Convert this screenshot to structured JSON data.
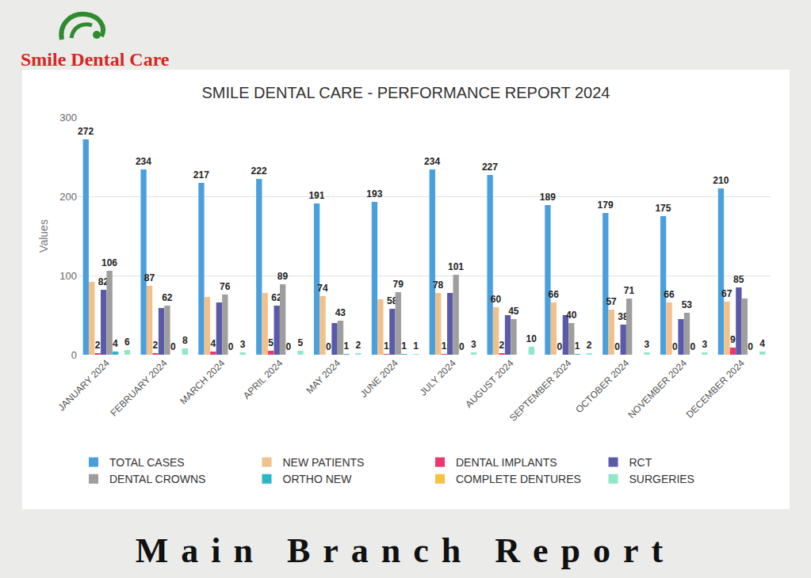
{
  "header": {
    "logo_text": "Smile Dental Care"
  },
  "footer": {
    "text": "Main Branch Report"
  },
  "chart_data": {
    "type": "bar",
    "title": "SMILE DENTAL CARE - PERFORMANCE REPORT 2024",
    "y_label": "Values",
    "categories": [
      "JANUARY 2024",
      "FEBRUARY 2024",
      "MARCH 2024",
      "APRIL 2024",
      "MAY 2024",
      "JUNE 2024",
      "JULY 2024",
      "AUGUST 2024",
      "SEPTEMBER 2024",
      "OCTOBER 2024",
      "NOVEMBER 2024",
      "DECEMBER 2024"
    ],
    "ylim": [
      0,
      300
    ],
    "yticks": [
      0,
      100,
      200,
      300
    ],
    "grid": true,
    "legend": "bottom",
    "data_labels": true,
    "series": [
      {
        "name": "TOTAL CASES",
        "color": "#4a9fdd",
        "values": [
          272,
          234,
          217,
          222,
          191,
          193,
          234,
          227,
          189,
          179,
          175,
          210
        ],
        "value_labels": [
          "272",
          "234",
          "217",
          "222",
          "191",
          "193",
          "234",
          "227",
          "189",
          "179",
          "175",
          "210"
        ]
      },
      {
        "name": "NEW PATIENTS",
        "color": "#f2c08a",
        "values": [
          92,
          87,
          73,
          78,
          74,
          70,
          78,
          60,
          66,
          57,
          66,
          67
        ],
        "value_labels": [
          null,
          "87",
          null,
          null,
          "74",
          null,
          "78",
          "60",
          "66",
          "57",
          "66",
          "67"
        ]
      },
      {
        "name": "DENTAL IMPLANTS",
        "color": "#e8386d",
        "values": [
          2,
          2,
          4,
          5,
          0,
          1,
          1,
          2,
          0,
          0,
          0,
          9
        ],
        "value_labels": [
          "2",
          "2",
          "4",
          "5",
          "0",
          "1",
          "1",
          "2",
          "0",
          "0",
          "0",
          "9"
        ]
      },
      {
        "name": "RCT",
        "color": "#5a5aa8",
        "values": [
          82,
          59,
          66,
          62,
          40,
          58,
          78,
          50,
          50,
          38,
          45,
          85
        ],
        "value_labels": [
          "82",
          null,
          null,
          "62",
          null,
          "58",
          null,
          null,
          null,
          "38",
          null,
          "85"
        ]
      },
      {
        "name": "DENTAL CROWNS",
        "color": "#9e9e9e",
        "values": [
          106,
          62,
          76,
          89,
          43,
          79,
          101,
          45,
          40,
          71,
          53,
          71
        ],
        "value_labels": [
          "106",
          "62",
          "76",
          "89",
          "43",
          "79",
          "101",
          "45",
          "40",
          "71",
          "53",
          null
        ]
      },
      {
        "name": "ORTHO NEW",
        "color": "#2ab5c9",
        "values": [
          4,
          0,
          0,
          0,
          1,
          1,
          0,
          0,
          1,
          0,
          0,
          0
        ],
        "value_labels": [
          "4",
          "0",
          "0",
          "0",
          "1",
          "1",
          "0",
          null,
          "1",
          null,
          "0",
          "0"
        ]
      },
      {
        "name": "COMPLETE DENTURES",
        "color": "#f5c242",
        "values": [
          0,
          0,
          0,
          0,
          0,
          0,
          0,
          0,
          0,
          0,
          0,
          0
        ],
        "value_labels": [
          null,
          null,
          null,
          null,
          null,
          null,
          null,
          null,
          null,
          null,
          null,
          null
        ]
      },
      {
        "name": "SURGERIES",
        "color": "#8ee8c8",
        "values": [
          6,
          8,
          3,
          5,
          2,
          1,
          3,
          10,
          2,
          3,
          3,
          4
        ],
        "value_labels": [
          "6",
          "8",
          "3",
          "5",
          "2",
          "1",
          "3",
          "10",
          "2",
          "3",
          "3",
          "4"
        ]
      }
    ]
  }
}
